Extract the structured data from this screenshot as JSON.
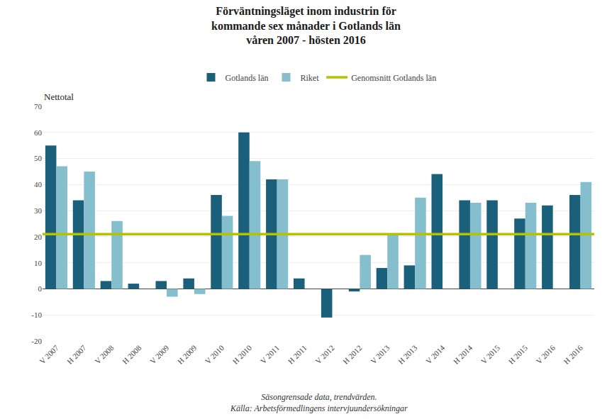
{
  "chart_data": {
    "type": "bar",
    "title": "Förväntningsläget inom industrin för\nkommande sex månader i Gotlands län\nvåren 2007 - hösten 2016",
    "ylabel": "Nettotal",
    "categories": [
      "V 2007",
      "H 2007",
      "V 2008",
      "H 2008",
      "V 2009",
      "H 2009",
      "V 2010",
      "H 2010",
      "V 2011",
      "H 2011",
      "V 2012",
      "H 2012",
      "V 2013",
      "H 2013",
      "V 2014",
      "H 2014",
      "V 2015",
      "H 2015",
      "V 2016",
      "H 2016"
    ],
    "series": [
      {
        "name": "Gotlands län",
        "color": "#1b607a",
        "values": [
          55,
          34,
          3,
          2,
          3,
          4,
          36,
          60,
          42,
          4,
          -11,
          -1,
          8,
          9,
          44,
          34,
          34,
          27,
          32,
          36
        ]
      },
      {
        "name": "Riket",
        "color": "#85bfcd",
        "values": [
          47,
          45,
          26,
          null,
          -3,
          -2,
          28,
          49,
          42,
          null,
          null,
          13,
          21,
          35,
          null,
          33,
          null,
          33,
          null,
          41
        ]
      }
    ],
    "average": {
      "name": "Genomsnitt Gotlands län",
      "value": 21,
      "color": "#b5c200"
    },
    "ylim": [
      -20,
      70
    ],
    "yticks": [
      -20,
      -10,
      0,
      10,
      20,
      30,
      40,
      50,
      60,
      70
    ],
    "grid": true,
    "footnote": "Säsongrensade data, trendvärden.\nKälla: Arbetsförmedlingens intervjuundersökningar"
  }
}
